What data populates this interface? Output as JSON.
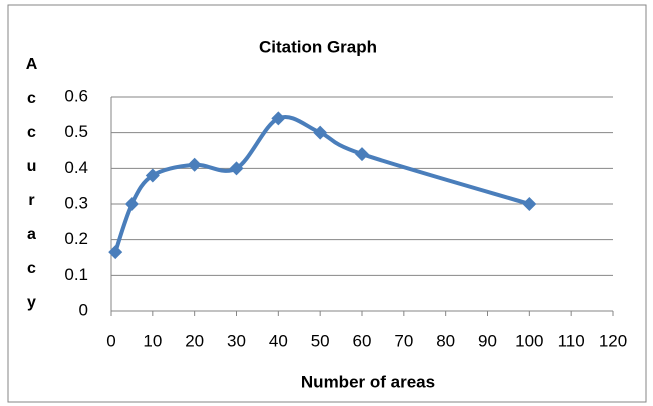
{
  "chart_data": {
    "type": "line",
    "title": "Citation Graph",
    "x_label": "Number of areas",
    "y_label": "Accuracy",
    "x": [
      1,
      5,
      10,
      20,
      30,
      40,
      50,
      60,
      100
    ],
    "series": [
      {
        "name": "Accuracy",
        "color": "#4a7ebb",
        "values": [
          0.165,
          0.3,
          0.38,
          0.41,
          0.4,
          0.54,
          0.5,
          0.44,
          0.3
        ]
      }
    ],
    "xlim": [
      0,
      120
    ],
    "xticks": [
      0,
      10,
      20,
      30,
      40,
      50,
      60,
      70,
      80,
      90,
      100,
      110,
      120
    ],
    "ylim": [
      0,
      0.6
    ],
    "yticks": [
      0,
      0.1,
      0.2,
      0.3,
      0.4,
      0.5,
      0.6
    ],
    "grid": true
  }
}
